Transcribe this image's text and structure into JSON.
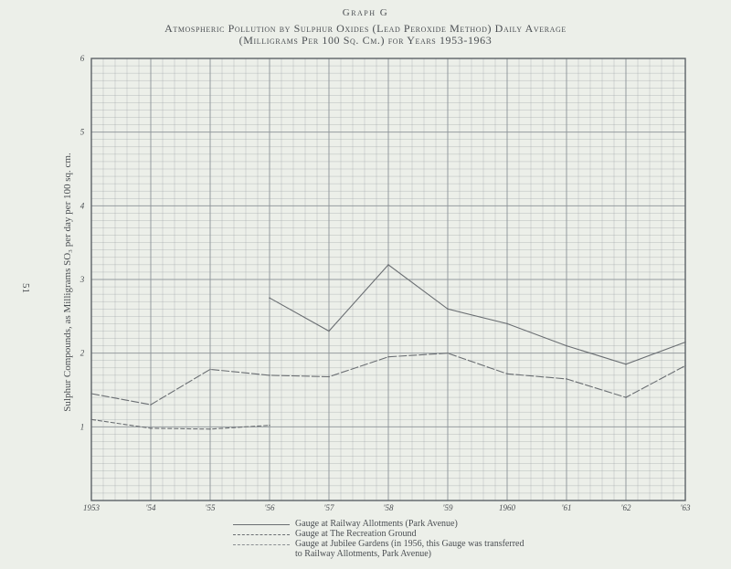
{
  "heading": {
    "graph_label": "Graph G",
    "title_line1": "Atmospheric Pollution by Sulphur Oxides (Lead Peroxide Method) Daily Average",
    "title_line2": "(Milligrams Per 100 Sq. Cm.) for Years 1953-1963"
  },
  "page_number": "51",
  "chart_data": {
    "type": "line",
    "title": "Atmospheric Pollution by Sulphur Oxides (Lead Peroxide Method) Daily Average (Milligrams Per 100 Sq. Cm.) for Years 1953-1963",
    "ylabel": "Sulphur Compounds, as Milligrams SO₃ per day per 100 sq. cm.",
    "xlabel": "",
    "ylim": [
      0,
      6
    ],
    "xlim": [
      1953,
      1963
    ],
    "y_ticks": [
      "1",
      "2",
      "3",
      "4",
      "5",
      "6"
    ],
    "x_ticks": [
      "1953",
      "'54",
      "'55",
      "'56",
      "'57",
      "'58",
      "'59",
      "1960",
      "'61",
      "'62",
      "'63"
    ],
    "grid": true,
    "legend_position": "bottom",
    "series": [
      {
        "name": "Gauge at Railway Allotments (Park Avenue)",
        "style": "solid",
        "x": [
          1956,
          1957,
          1958,
          1959,
          1960,
          1961,
          1962,
          1963
        ],
        "values": [
          2.75,
          2.3,
          3.2,
          2.6,
          2.4,
          2.1,
          1.85,
          2.15
        ]
      },
      {
        "name": "Gauge at The Recreation Ground",
        "style": "dashed",
        "x": [
          1953,
          1954,
          1955,
          1956,
          1957,
          1958,
          1959,
          1960,
          1961,
          1962,
          1963
        ],
        "values": [
          1.45,
          1.3,
          1.78,
          1.7,
          1.68,
          1.95,
          2.0,
          1.72,
          1.65,
          1.4,
          1.83
        ]
      },
      {
        "name": "Gauge at Jubilee Gardens (in 1956, this Gauge was transferred to Railway Allotments, Park Avenue)",
        "style": "dotted",
        "x": [
          1953,
          1954,
          1955,
          1956
        ],
        "values": [
          1.1,
          0.98,
          0.97,
          1.02
        ]
      }
    ]
  },
  "legend": {
    "item1": "Gauge at Railway Allotments (Park Avenue)",
    "item2": "Gauge at The Recreation Ground",
    "item3_line1": "Gauge at Jubilee Gardens (in 1956, this Gauge was transferred",
    "item3_line2": "to Railway Allotments, Park Avenue)"
  },
  "colors": {
    "grid": "#8c9398",
    "line": "#6a6e72",
    "background": "#ecefe9"
  }
}
